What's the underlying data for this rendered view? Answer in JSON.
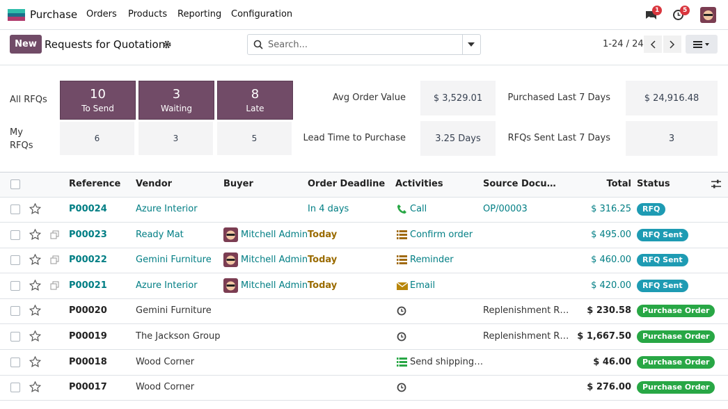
{
  "navbar": {
    "app": "Purchase",
    "menus": [
      "Orders",
      "Products",
      "Reporting",
      "Configuration"
    ],
    "message_count": 1,
    "activity_count": 5
  },
  "control_panel": {
    "new_button": "New",
    "title": "Requests for Quotation",
    "search_placeholder": "Search...",
    "pager": "1-24 / 24"
  },
  "dashboard": {
    "all_label": "All RFQs",
    "my_label": "My RFQs",
    "tiles": [
      {
        "value": 10,
        "label": "To Send"
      },
      {
        "value": 3,
        "label": "Waiting"
      },
      {
        "value": 8,
        "label": "Late"
      }
    ],
    "my_values": [
      6,
      3,
      5
    ],
    "stats": [
      {
        "label": "Avg Order Value",
        "value": "$ 3,529.01"
      },
      {
        "label": "Purchased Last 7 Days",
        "value": "$ 24,916.48"
      },
      {
        "label": "Lead Time to Purchase",
        "value": "3.25 Days"
      },
      {
        "label": "RFQs Sent Last 7 Days",
        "value": 3
      }
    ]
  },
  "table": {
    "headers": [
      "Reference",
      "Vendor",
      "Buyer",
      "Order Deadline",
      "Activities",
      "Source Docu…",
      "Total",
      "Status"
    ],
    "rows": [
      {
        "reference": "P00024",
        "vendor": "Azure Interior",
        "buyer": null,
        "deadline": "In 4 days",
        "activity": "Call",
        "icon": "phone",
        "source": "OP/00003",
        "total": "$ 316.25",
        "status": "RFQ",
        "draft": true
      },
      {
        "reference": "P00023",
        "vendor": "Ready Mat",
        "buyer": "Mitchell Admin",
        "deadline": "Today",
        "activity": "Confirm order",
        "icon": "list",
        "source": null,
        "total": "$ 495.00",
        "status": "RFQ Sent",
        "draft": true
      },
      {
        "reference": "P00022",
        "vendor": "Gemini Furniture",
        "buyer": "Mitchell Admin",
        "deadline": "Today",
        "activity": "Reminder",
        "icon": "list",
        "source": null,
        "total": "$ 460.00",
        "status": "RFQ Sent",
        "draft": true
      },
      {
        "reference": "P00021",
        "vendor": "Azure Interior",
        "buyer": "Mitchell Admin",
        "deadline": "Today",
        "activity": "Email",
        "icon": "mail",
        "source": null,
        "total": "$ 420.00",
        "status": "RFQ Sent",
        "draft": true
      },
      {
        "reference": "P00020",
        "vendor": "Gemini Furniture",
        "buyer": null,
        "deadline": null,
        "activity": null,
        "icon": "clock",
        "source": "Replenishment R…",
        "total": "$ 230.58",
        "status": "Purchase Order",
        "draft": false
      },
      {
        "reference": "P00019",
        "vendor": "The Jackson Group",
        "buyer": null,
        "deadline": null,
        "activity": null,
        "icon": "clock",
        "source": "Replenishment R…",
        "total": "$ 1,667.50",
        "status": "Purchase Order",
        "draft": false
      },
      {
        "reference": "P00018",
        "vendor": "Wood Corner",
        "buyer": null,
        "deadline": null,
        "activity": "Send shipping…",
        "icon": "list-green",
        "source": null,
        "total": "$ 46.00",
        "status": "Purchase Order",
        "draft": false
      },
      {
        "reference": "P00017",
        "vendor": "Wood Corner",
        "buyer": null,
        "deadline": null,
        "activity": null,
        "icon": "clock",
        "source": null,
        "total": "$ 276.00",
        "status": "Purchase Order",
        "draft": false
      }
    ]
  }
}
